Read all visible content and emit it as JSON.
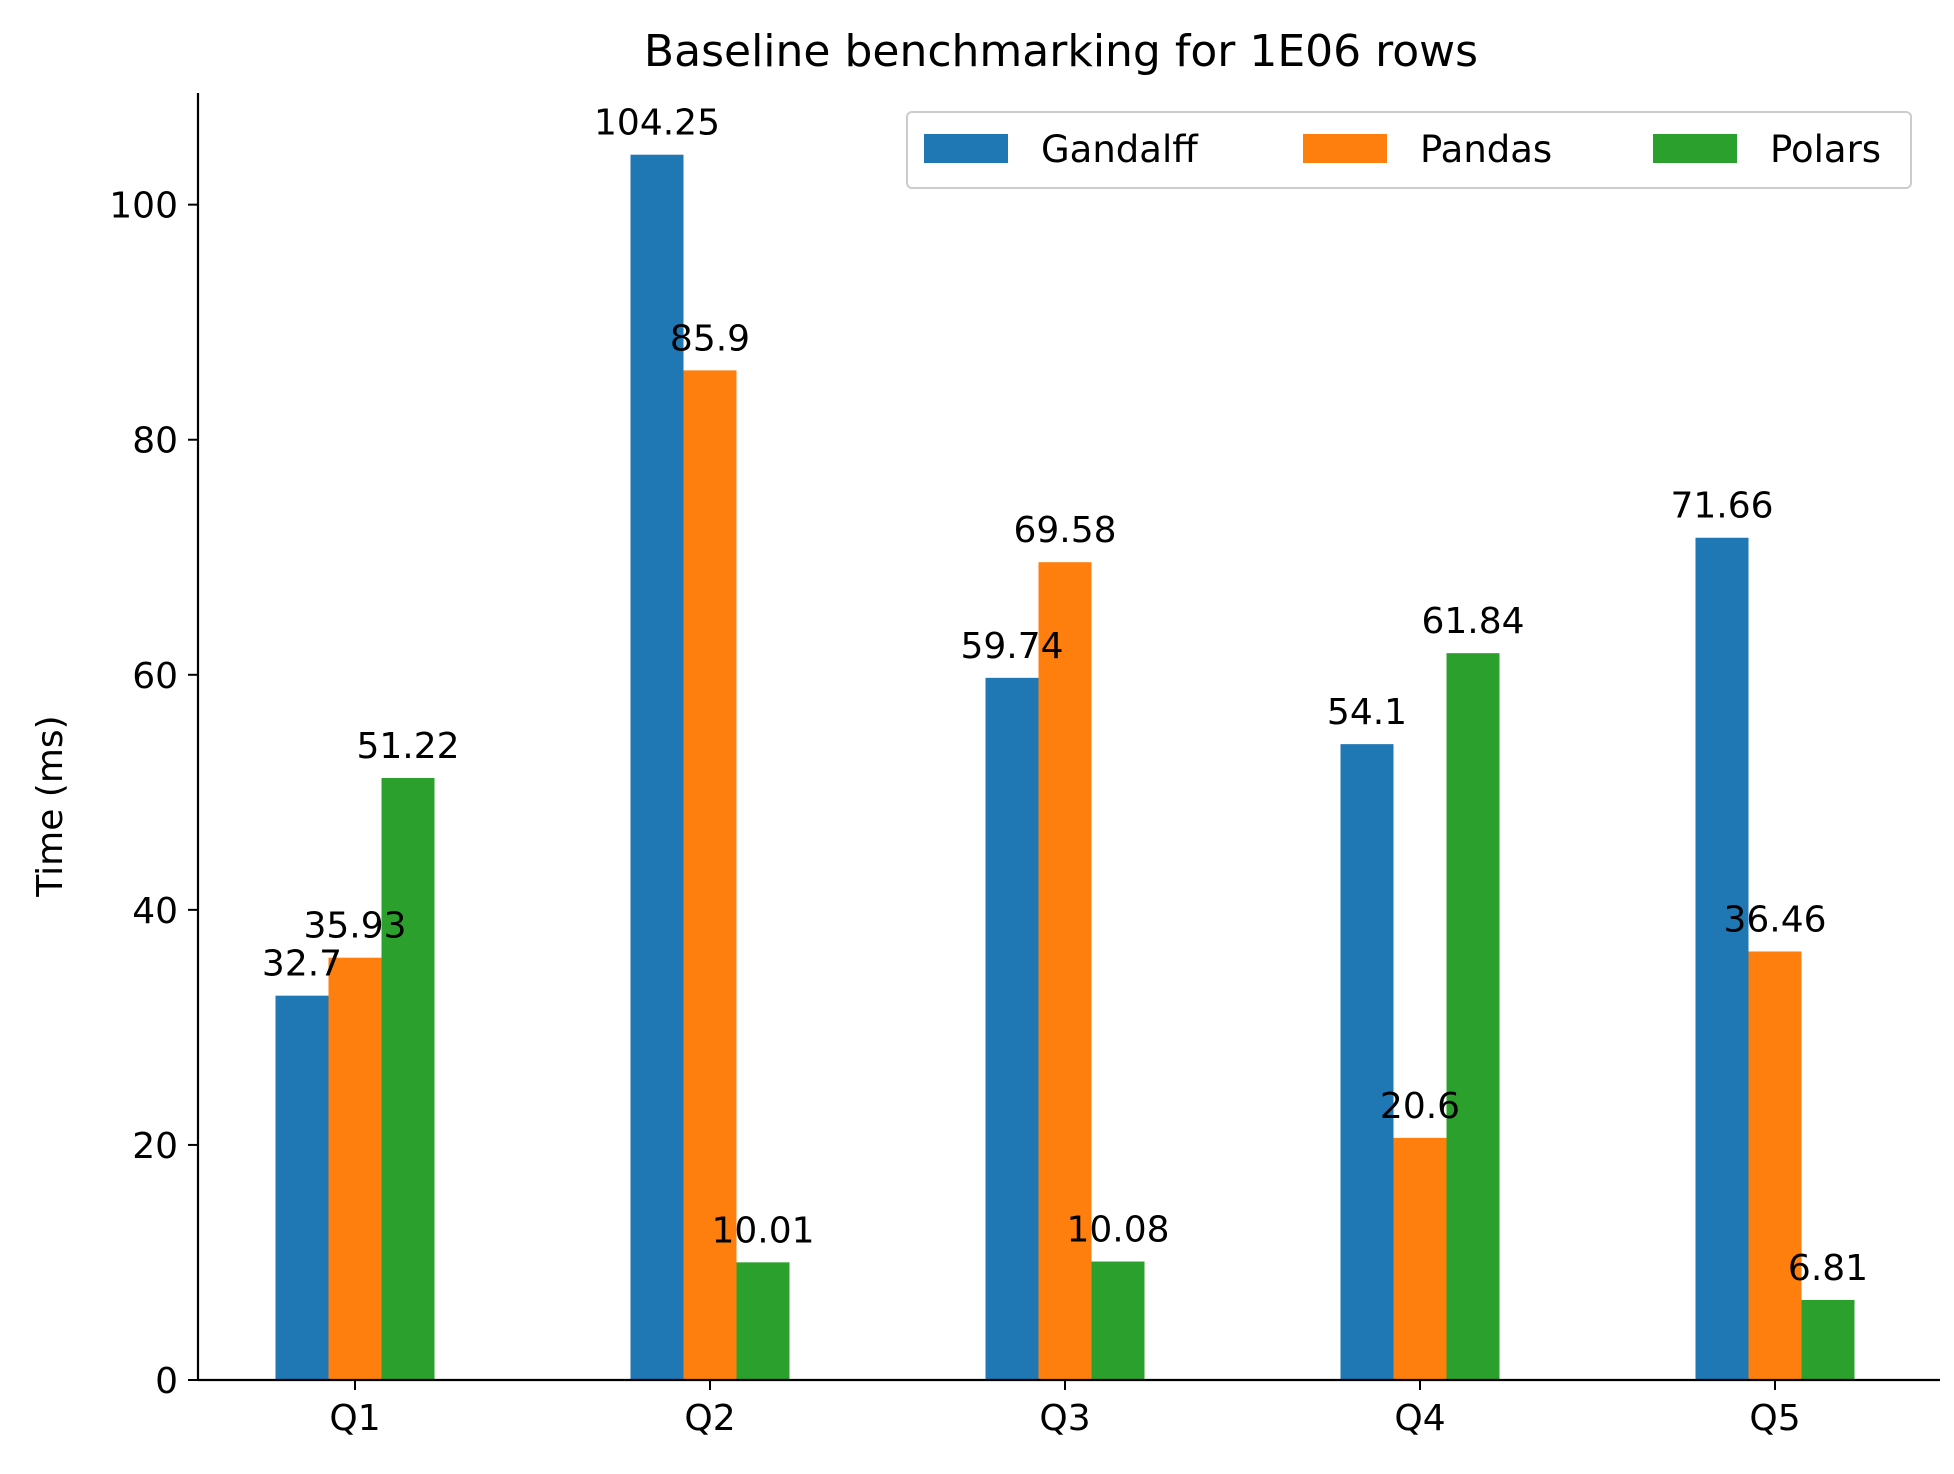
{
  "chart_data": {
    "type": "bar",
    "title": "Baseline benchmarking for 1E06 rows",
    "xlabel": "",
    "ylabel": "Time (ms)",
    "categories": [
      "Q1",
      "Q2",
      "Q3",
      "Q4",
      "Q5"
    ],
    "series": [
      {
        "name": "Gandalff",
        "color": "#1f77b4",
        "values": [
          32.7,
          104.25,
          59.74,
          54.1,
          71.66
        ],
        "labels": [
          "32.7",
          "104.25",
          "59.74",
          "54.1",
          "71.66"
        ]
      },
      {
        "name": "Pandas",
        "color": "#ff7f0e",
        "values": [
          35.93,
          85.9,
          69.58,
          20.6,
          36.46
        ],
        "labels": [
          "35.93",
          "85.9",
          "69.58",
          "20.6",
          "36.46"
        ]
      },
      {
        "name": "Polars",
        "color": "#2ca02c",
        "values": [
          51.22,
          10.01,
          10.08,
          61.84,
          6.81
        ],
        "labels": [
          "51.22",
          "10.01",
          "10.08",
          "61.84",
          "6.81"
        ]
      }
    ],
    "ylim": [
      0,
      109.5
    ],
    "yticks": [
      0,
      20,
      40,
      60,
      80,
      100
    ],
    "ytick_labels": [
      "0",
      "20",
      "40",
      "60",
      "80",
      "100"
    ],
    "grid": false,
    "legend": {
      "placement": "top-right",
      "columns": 3
    }
  }
}
